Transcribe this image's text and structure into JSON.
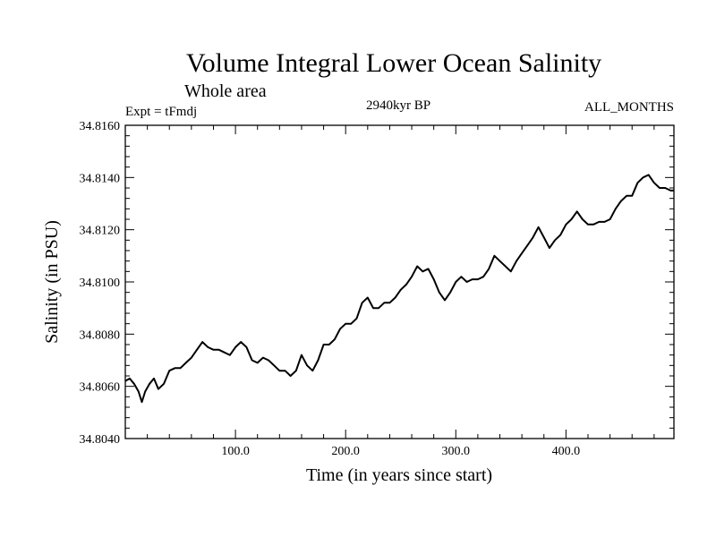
{
  "chart_data": {
    "type": "line",
    "title": "Volume Integral Lower Ocean Salinity",
    "subtitle": "Whole area",
    "left_label": "Expt = tFmdj",
    "center_label": "2940kyr BP",
    "right_label": "ALL_MONTHS",
    "xlabel": "Time (in years since start)",
    "ylabel": "Salinity (in PSU)",
    "xlim": [
      0,
      498
    ],
    "ylim": [
      34.804,
      34.816
    ],
    "x_ticks": [
      100,
      200,
      300,
      400
    ],
    "x_tick_labels": [
      "100.0",
      "200.0",
      "300.0",
      "400.0"
    ],
    "y_ticks": [
      34.804,
      34.806,
      34.808,
      34.81,
      34.812,
      34.814,
      34.816
    ],
    "y_tick_labels": [
      "34.8040",
      "34.8060",
      "34.8080",
      "34.8100",
      "34.8120",
      "34.8140",
      "34.8160"
    ],
    "grid": false,
    "series": [
      {
        "name": "salinity",
        "color": "#000000",
        "x": [
          0,
          4,
          8,
          12,
          15,
          18,
          22,
          26,
          30,
          35,
          40,
          45,
          50,
          55,
          60,
          65,
          70,
          75,
          80,
          85,
          90,
          95,
          100,
          105,
          110,
          115,
          120,
          125,
          130,
          135,
          140,
          145,
          150,
          155,
          160,
          165,
          170,
          175,
          180,
          185,
          190,
          195,
          200,
          205,
          210,
          215,
          220,
          225,
          230,
          235,
          240,
          245,
          250,
          255,
          260,
          265,
          270,
          275,
          280,
          285,
          290,
          295,
          300,
          305,
          310,
          315,
          320,
          325,
          330,
          335,
          340,
          345,
          350,
          355,
          360,
          365,
          370,
          375,
          380,
          385,
          390,
          395,
          400,
          405,
          410,
          415,
          420,
          425,
          430,
          435,
          440,
          445,
          450,
          455,
          460,
          465,
          470,
          475,
          480,
          485,
          490,
          495,
          498
        ],
        "values": [
          34.8062,
          34.8063,
          34.8061,
          34.8058,
          34.8054,
          34.8058,
          34.8061,
          34.8063,
          34.8059,
          34.8061,
          34.8066,
          34.8067,
          34.8067,
          34.8069,
          34.8071,
          34.8074,
          34.8077,
          34.8075,
          34.8074,
          34.8074,
          34.8073,
          34.8072,
          34.8075,
          34.8077,
          34.8075,
          34.807,
          34.8069,
          34.8071,
          34.807,
          34.8068,
          34.8066,
          34.8066,
          34.8064,
          34.8066,
          34.8072,
          34.8068,
          34.8066,
          34.807,
          34.8076,
          34.8076,
          34.8078,
          34.8082,
          34.8084,
          34.8084,
          34.8086,
          34.8092,
          34.8094,
          34.809,
          34.809,
          34.8092,
          34.8092,
          34.8094,
          34.8097,
          34.8099,
          34.8102,
          34.8106,
          34.8104,
          34.8105,
          34.8101,
          34.8096,
          34.8093,
          34.8096,
          34.81,
          34.8102,
          34.81,
          34.8101,
          34.8101,
          34.8102,
          34.8105,
          34.811,
          34.8108,
          34.8106,
          34.8104,
          34.8108,
          34.8111,
          34.8114,
          34.8117,
          34.8121,
          34.8117,
          34.8113,
          34.8116,
          34.8118,
          34.8122,
          34.8124,
          34.8127,
          34.8124,
          34.8122,
          34.8122,
          34.8123,
          34.8123,
          34.8124,
          34.8128,
          34.8131,
          34.8133,
          34.8133,
          34.8138,
          34.814,
          34.8141,
          34.8138,
          34.8136,
          34.8136,
          34.8135,
          34.8135
        ]
      }
    ]
  }
}
